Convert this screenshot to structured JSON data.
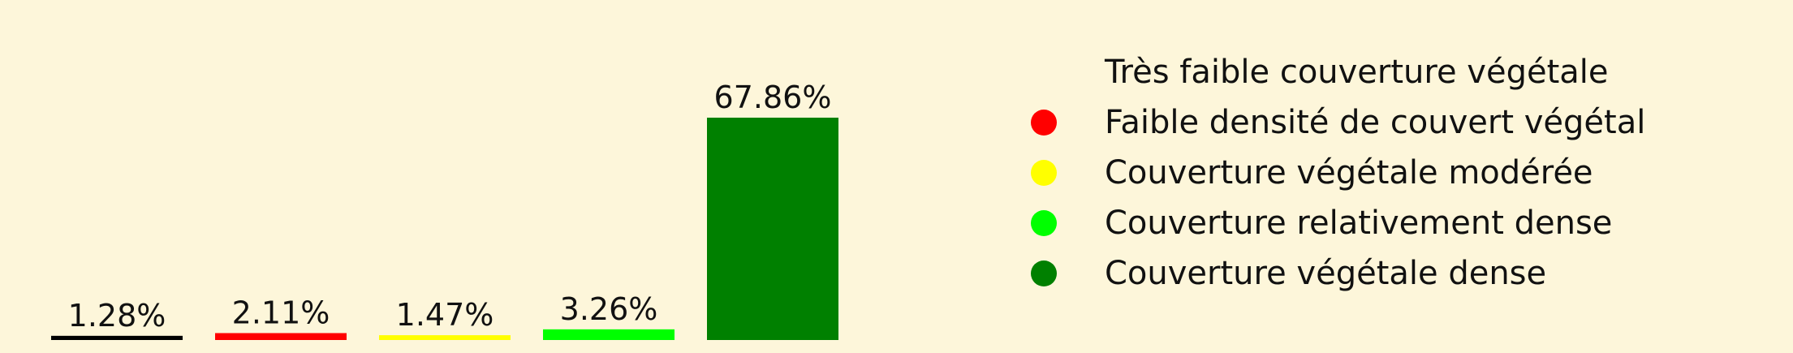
{
  "chart_data": {
    "type": "bar",
    "title": "",
    "xlabel": "",
    "ylabel": "",
    "ylim": [
      0,
      67.86
    ],
    "grid": false,
    "legend_placement": "right",
    "categories": [
      "Très faible couverture végétale",
      "Faible densité de couvert végétal",
      "Couverture végétale modérée",
      "Couverture relativement dense",
      "Couverture végétale dense"
    ],
    "values": [
      1.28,
      2.11,
      1.47,
      3.26,
      67.86
    ],
    "value_labels": [
      "1.28%",
      "2.11%",
      "1.47%",
      "3.26%",
      "67.86%"
    ],
    "colors": [
      "#000000",
      "#ff0000",
      "#ffff00",
      "#00ff00",
      "#008000"
    ]
  },
  "legend": {
    "items": [
      {
        "label": "Très faible couverture végétale",
        "color": "#fdf6da"
      },
      {
        "label": "Faible densité de couvert végétal",
        "color": "#ff0000"
      },
      {
        "label": "Couverture végétale modérée",
        "color": "#ffff00"
      },
      {
        "label": "Couverture relativement dense",
        "color": "#00ff00"
      },
      {
        "label": "Couverture végétale dense",
        "color": "#008000"
      }
    ]
  }
}
